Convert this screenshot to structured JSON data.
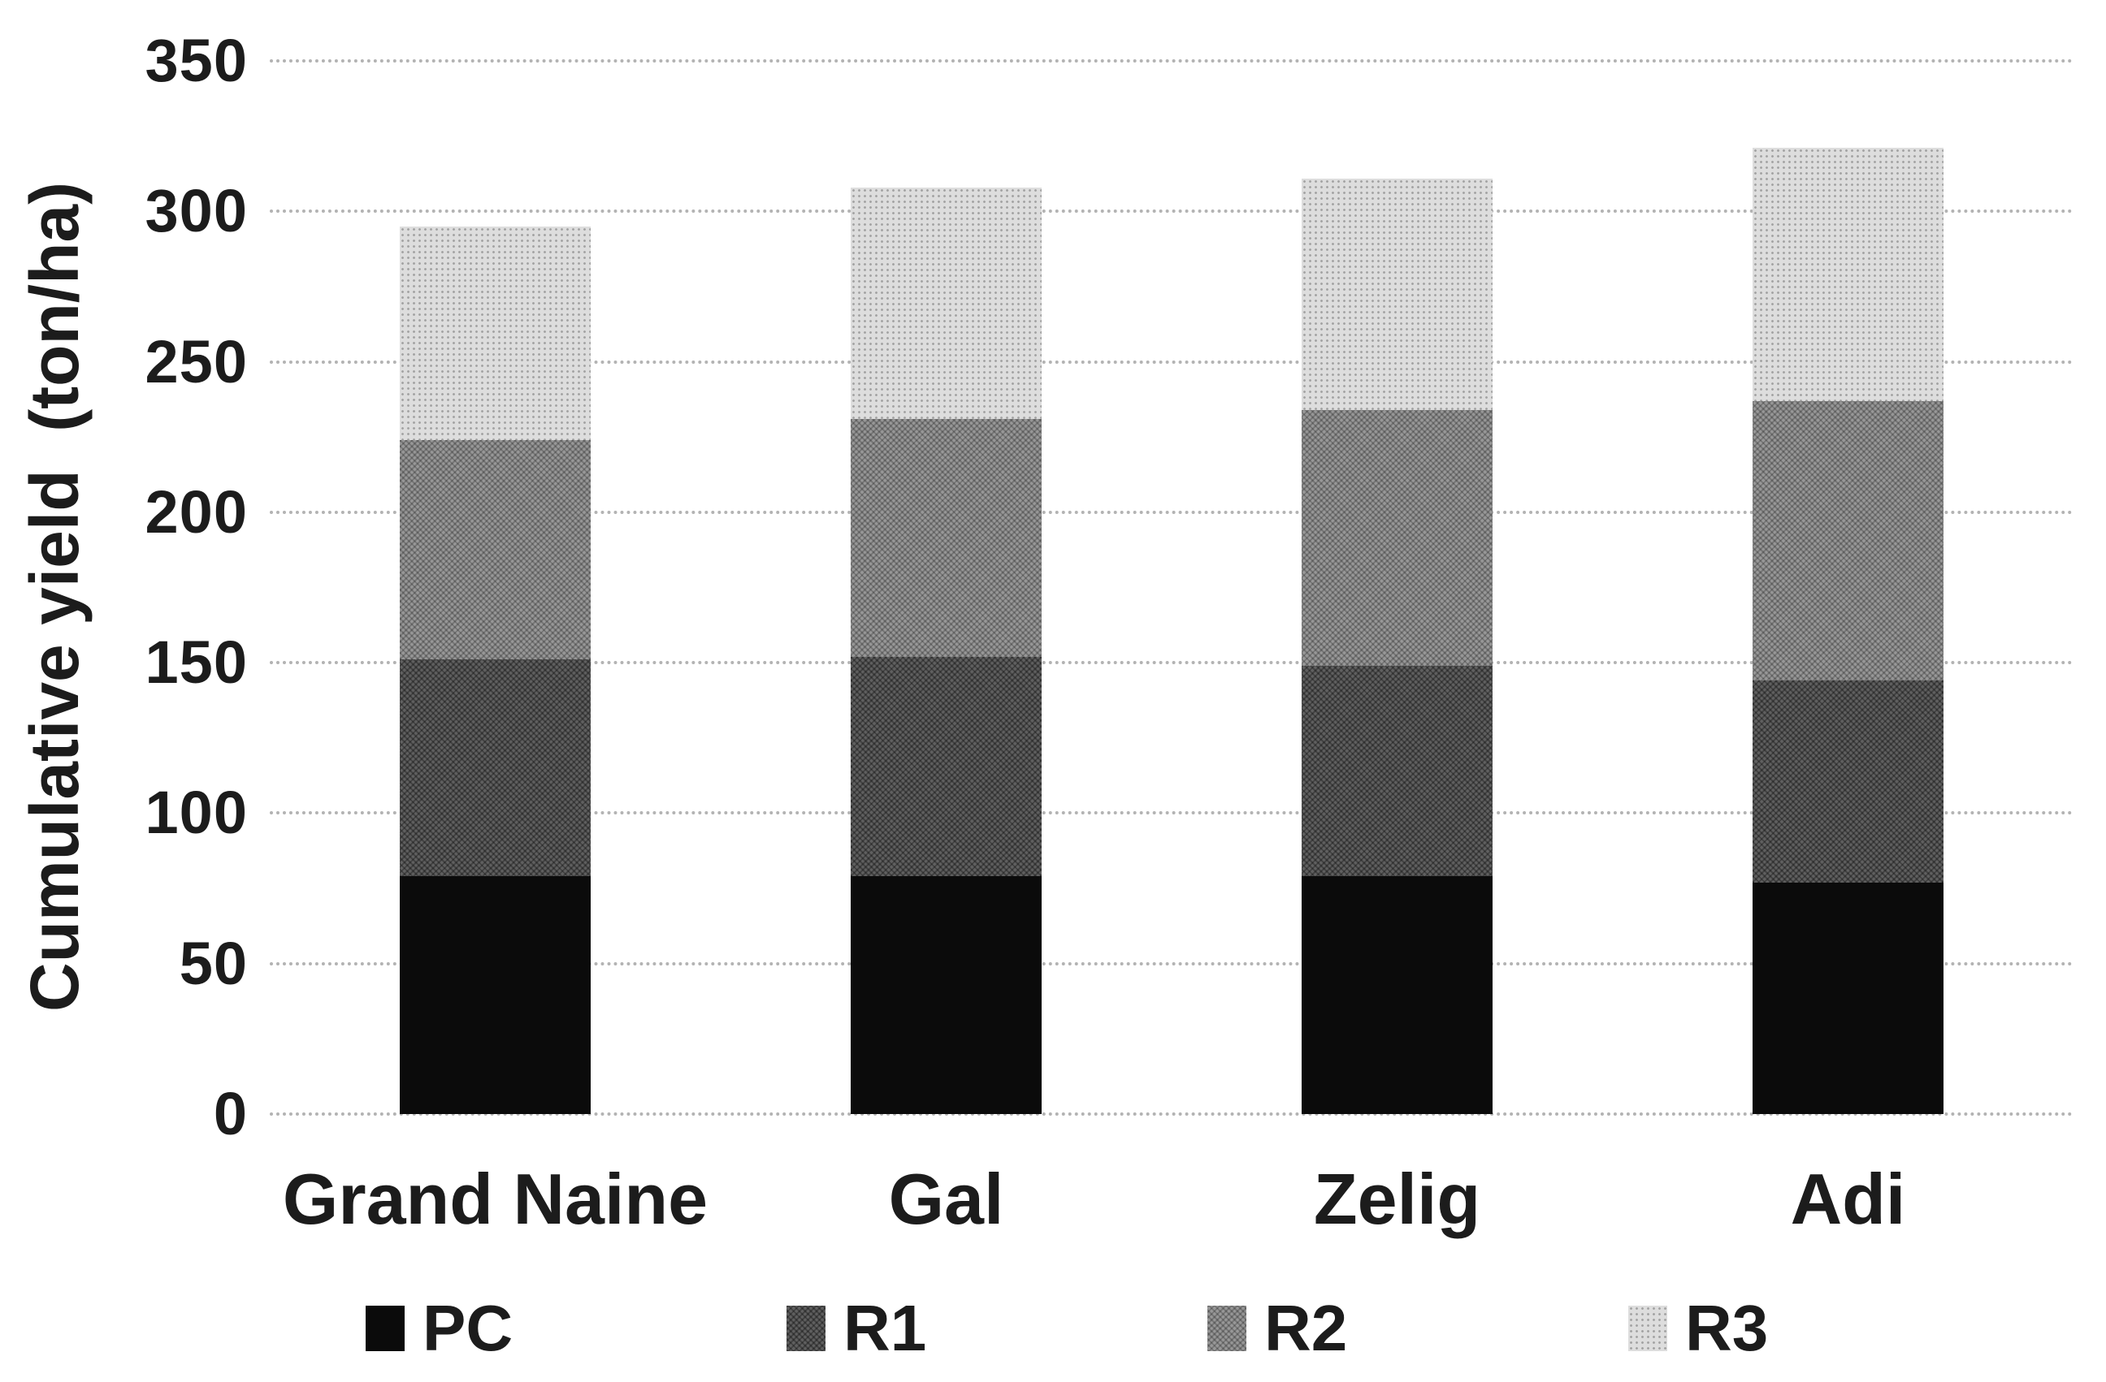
{
  "chart_data": {
    "type": "bar",
    "stacked": true,
    "categories": [
      "Grand Naine",
      "Gal",
      "Zelig",
      "Adi"
    ],
    "series": [
      {
        "name": "PC",
        "values": [
          79,
          79,
          79,
          77
        ],
        "color": "#0b0b0b",
        "texture": "solid"
      },
      {
        "name": "R1",
        "values": [
          72,
          73,
          70,
          67
        ],
        "color": "#606060",
        "texture": "crosshatch-dark"
      },
      {
        "name": "R2",
        "values": [
          73,
          79,
          85,
          93
        ],
        "color": "#989898",
        "texture": "crosshatch-medium"
      },
      {
        "name": "R3",
        "values": [
          71,
          77,
          77,
          84
        ],
        "color": "#dddddd",
        "texture": "dots-light"
      }
    ],
    "stack_totals": [
      295,
      308,
      311,
      321
    ],
    "ylabel": "Cumulative yield  (ton/ha)",
    "xlabel": "",
    "ylim": [
      0,
      350
    ],
    "yticks": [
      0,
      50,
      100,
      150,
      200,
      250,
      300,
      350
    ],
    "grid": true,
    "gridline_color": "#b3b3b3",
    "legend_position": "bottom",
    "legend": [
      "PC",
      "R1",
      "R2",
      "R3"
    ],
    "text_color": "#1c1c1c",
    "background_color": "#ffffff"
  }
}
